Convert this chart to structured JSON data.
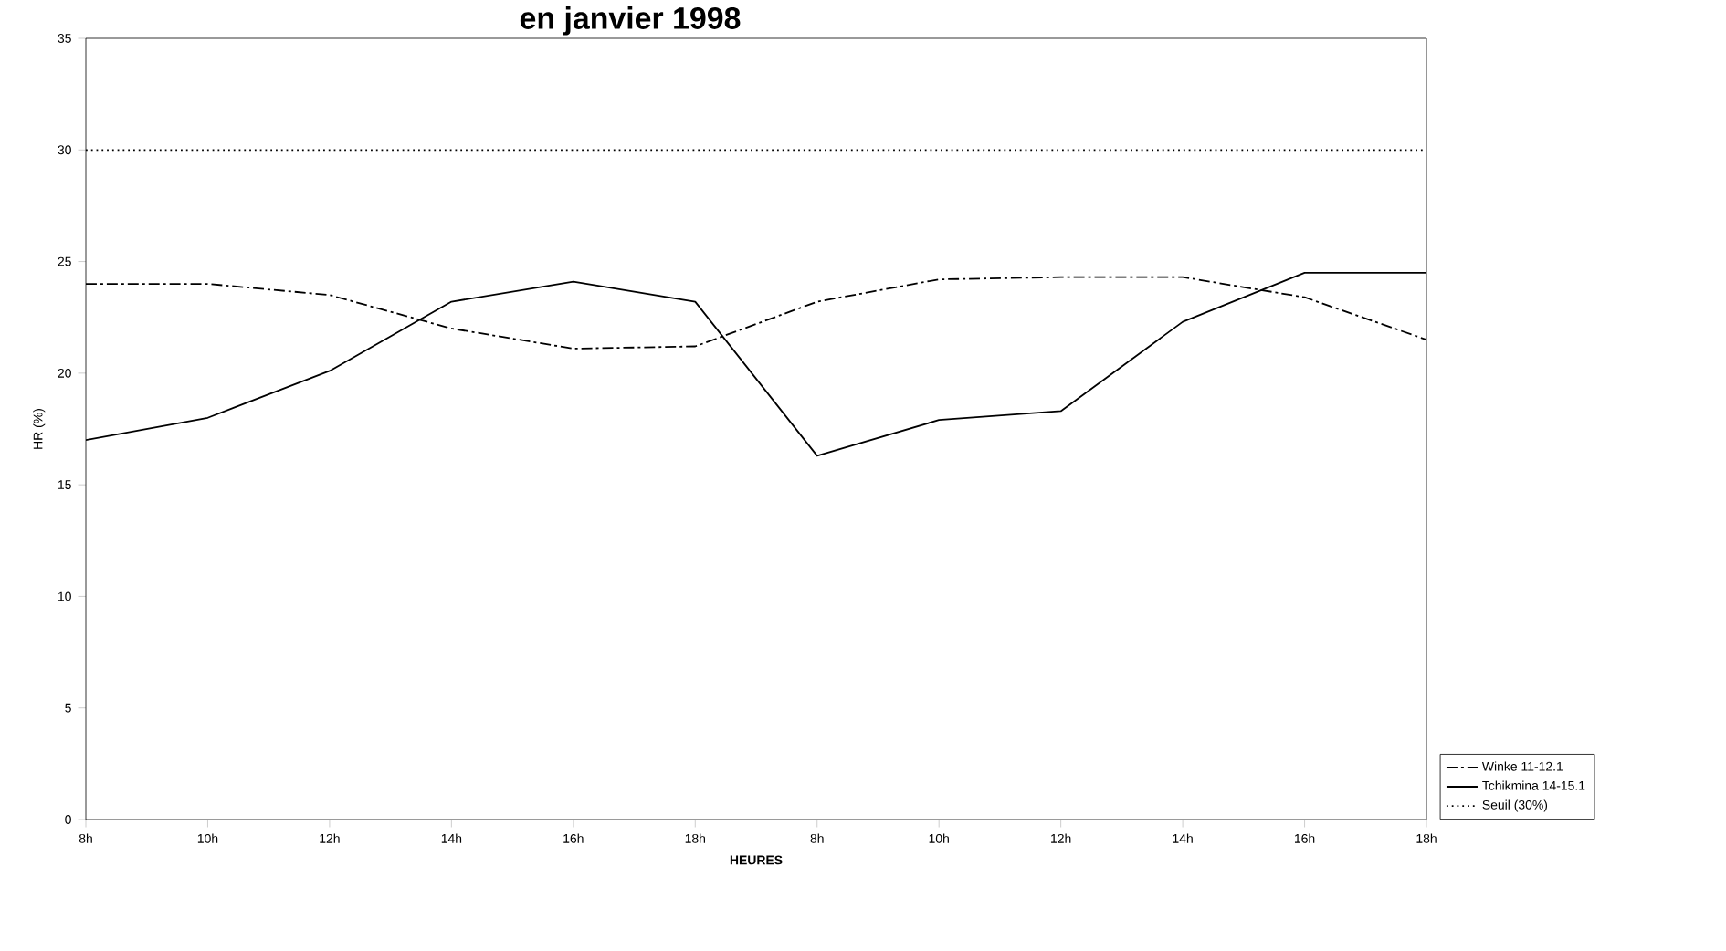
{
  "chart_data": {
    "type": "line",
    "title": "en janvier 1998",
    "xlabel": "HEURES",
    "ylabel": "HR (%)",
    "categories": [
      "8h",
      "10h",
      "12h",
      "14h",
      "16h",
      "18h",
      "8h",
      "10h",
      "12h",
      "14h",
      "16h",
      "18h"
    ],
    "series": [
      {
        "name": "Winke 11-12.1",
        "color": "#000000",
        "line_style": "dashed",
        "values": [
          24.0,
          24.0,
          23.5,
          22.0,
          21.1,
          21.2,
          23.2,
          24.2,
          24.3,
          24.3,
          23.4,
          21.5
        ]
      },
      {
        "name": "Tchikmina 14-15.1",
        "color": "#000000",
        "line_style": "solid",
        "values": [
          17.0,
          18.0,
          20.1,
          23.2,
          24.1,
          23.2,
          16.3,
          17.9,
          18.3,
          22.3,
          24.5,
          24.5
        ]
      },
      {
        "name": "Seuil (30%)",
        "color": "#000000",
        "line_style": "dotted",
        "values": [
          30,
          30,
          30,
          30,
          30,
          30,
          30,
          30,
          30,
          30,
          30,
          30
        ]
      }
    ],
    "ylim": [
      0,
      35
    ],
    "yticks": [
      0,
      5,
      10,
      15,
      20,
      25,
      30,
      35
    ],
    "grid": false,
    "legend": "bottom right",
    "marker": "none"
  }
}
